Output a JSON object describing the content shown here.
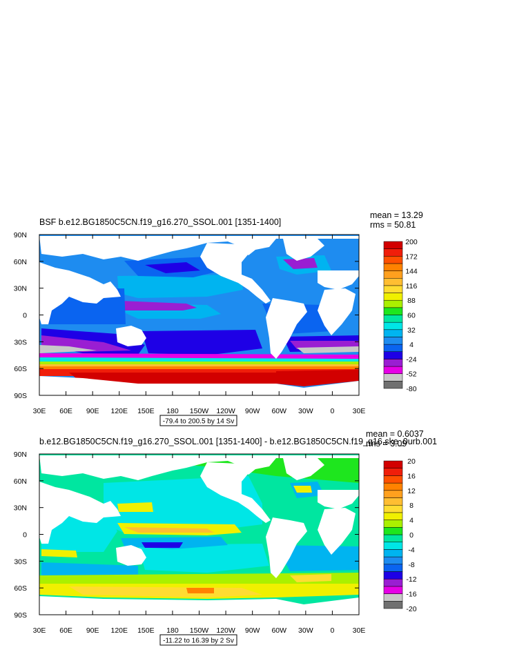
{
  "chart_data": [
    {
      "type": "heatmap",
      "title": "BSF b.e12.BG1850C5CN.f19_g16.270_SSOL.001 [1351-1400]",
      "stats": [
        "mean = 13.29",
        "rms = 50.81"
      ],
      "range_label": "-79.4 to 200.5 by 14 Sv",
      "x_ticks": [
        "30E",
        "60E",
        "90E",
        "120E",
        "150E",
        "180",
        "150W",
        "120W",
        "90W",
        "60W",
        "30W",
        "0",
        "30E"
      ],
      "y_ticks": [
        "90N",
        "60N",
        "30N",
        "0",
        "30S",
        "60S",
        "90S"
      ],
      "colorbar": {
        "colors": [
          "#707070",
          "#c8c8c8",
          "#e600e6",
          "#9a1ed2",
          "#1e00e6",
          "#0a64f0",
          "#1e8cf0",
          "#00b4f0",
          "#00e6e6",
          "#00e6a0",
          "#1ee61e",
          "#aaf000",
          "#f0f000",
          "#ffdc32",
          "#ffbe32",
          "#ffa01e",
          "#ff8200",
          "#ff5000",
          "#f01e0a",
          "#d20000"
        ],
        "labels": [
          {
            "text": "-80",
            "edge": 0
          },
          {
            "text": "-52",
            "edge": 2
          },
          {
            "text": "-24",
            "edge": 4
          },
          {
            "text": "4",
            "edge": 6
          },
          {
            "text": "32",
            "edge": 8
          },
          {
            "text": "60",
            "edge": 10
          },
          {
            "text": "88",
            "edge": 12
          },
          {
            "text": "116",
            "edge": 14
          },
          {
            "text": "144",
            "edge": 16
          },
          {
            "text": "172",
            "edge": 18
          },
          {
            "text": "200",
            "edge": 20
          }
        ]
      }
    },
    {
      "type": "heatmap",
      "title": "b.e12.BG1850C5CN.f19_g16.270_SSOL.001 [1351-1400] - b.e12.BG1850C5CN.f19_g16.ske_0urb.001",
      "stats": [
        "mean = 0.6037",
        "rms = 3.09"
      ],
      "range_label": "-11.22 to 16.39 by 2 Sv",
      "x_ticks": [
        "30E",
        "60E",
        "90E",
        "120E",
        "150E",
        "180",
        "150W",
        "120W",
        "90W",
        "60W",
        "30W",
        "0",
        "30E"
      ],
      "y_ticks": [
        "90N",
        "60N",
        "30N",
        "0",
        "30S",
        "60S",
        "90S"
      ],
      "colorbar": {
        "colors": [
          "#707070",
          "#c8c8c8",
          "#e600e6",
          "#9a1ed2",
          "#1e00e6",
          "#0a64f0",
          "#1e8cf0",
          "#00b4f0",
          "#00e6e6",
          "#00e6a0",
          "#1ee61e",
          "#aaf000",
          "#f0f000",
          "#ffdc32",
          "#ffbe32",
          "#ffa01e",
          "#ff8200",
          "#ff5000",
          "#f01e0a",
          "#d20000"
        ],
        "labels": [
          {
            "text": "-20",
            "edge": 0
          },
          {
            "text": "-16",
            "edge": 2
          },
          {
            "text": "-12",
            "edge": 4
          },
          {
            "text": "-8",
            "edge": 6
          },
          {
            "text": "-4",
            "edge": 8
          },
          {
            "text": "0",
            "edge": 10
          },
          {
            "text": "4",
            "edge": 12
          },
          {
            "text": "8",
            "edge": 14
          },
          {
            "text": "12",
            "edge": 16
          },
          {
            "text": "16",
            "edge": 18
          },
          {
            "text": "20",
            "edge": 20
          }
        ]
      }
    }
  ]
}
